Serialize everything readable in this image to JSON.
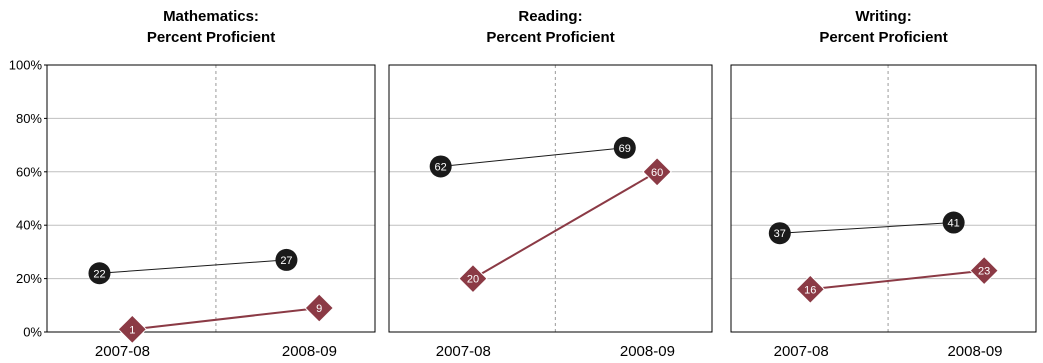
{
  "chart_data": [
    {
      "type": "line",
      "title": [
        "Mathematics:",
        "Percent Proficient"
      ],
      "categories": [
        "2007-08",
        "2008-09"
      ],
      "ylim": [
        0,
        100
      ],
      "yticks": [
        "0%",
        "20%",
        "40%",
        "60%",
        "80%",
        "100%"
      ],
      "grid": true,
      "series": [
        {
          "values": [
            22,
            27
          ],
          "marker": "circle",
          "color": "#1a1a1a"
        },
        {
          "values": [
            1,
            9
          ],
          "marker": "diamond",
          "color": "#8b3a45"
        }
      ]
    },
    {
      "type": "line",
      "title": [
        "Reading:",
        "Percent Proficient"
      ],
      "categories": [
        "2007-08",
        "2008-09"
      ],
      "ylim": [
        0,
        100
      ],
      "grid": true,
      "series": [
        {
          "values": [
            62,
            69
          ],
          "marker": "circle",
          "color": "#1a1a1a"
        },
        {
          "values": [
            20,
            60
          ],
          "marker": "diamond",
          "color": "#8b3a45"
        }
      ]
    },
    {
      "type": "line",
      "title": [
        "Writing:",
        "Percent Proficient"
      ],
      "categories": [
        "2007-08",
        "2008-09"
      ],
      "ylim": [
        0,
        100
      ],
      "grid": true,
      "series": [
        {
          "values": [
            37,
            41
          ],
          "marker": "circle",
          "color": "#1a1a1a"
        },
        {
          "values": [
            16,
            23
          ],
          "marker": "diamond",
          "color": "#8b3a45"
        }
      ]
    }
  ]
}
